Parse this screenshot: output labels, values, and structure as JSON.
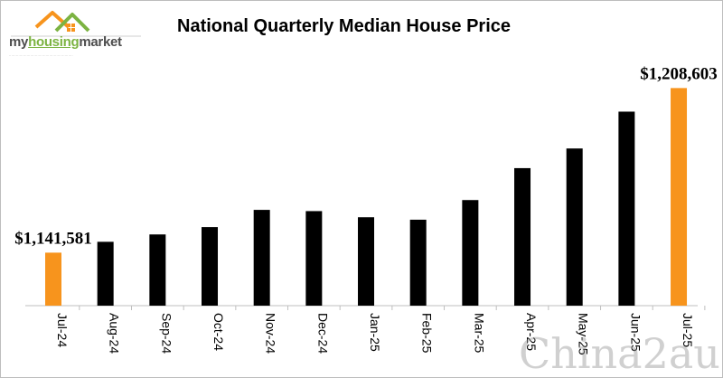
{
  "logo": {
    "brand_part1": "my",
    "brand_part2": "housing",
    "brand_part3": "market",
    "tagline": "......................................................",
    "icon": "house-roof-icon"
  },
  "watermark": "China2au",
  "colors": {
    "bar_default": "#000000",
    "bar_highlight": "#f7941d",
    "logo_green": "#7cb342",
    "logo_orange": "#f7941d"
  },
  "chart_data": {
    "type": "bar",
    "title": "National Quarterly Median House Price",
    "xlabel": "",
    "ylabel": "",
    "categories": [
      "Jul-24",
      "Aug-24",
      "Sep-24",
      "Oct-24",
      "Nov-24",
      "Dec-24",
      "Jan-25",
      "Feb-25",
      "Mar-25",
      "Apr-25",
      "May-25",
      "Jun-25",
      "Jul-25"
    ],
    "values": [
      1141581,
      1146000,
      1149000,
      1152000,
      1159000,
      1158500,
      1156000,
      1155000,
      1163000,
      1176000,
      1184000,
      1199000,
      1208603
    ],
    "highlighted": [
      "Jul-24",
      "Jul-25"
    ],
    "data_labels": [
      {
        "category": "Jul-24",
        "text": "$1,141,581"
      },
      {
        "category": "Jul-25",
        "text": "$1,208,603"
      }
    ],
    "ylim": [
      1120000,
      1215000
    ],
    "grid": false,
    "legend": "none"
  }
}
